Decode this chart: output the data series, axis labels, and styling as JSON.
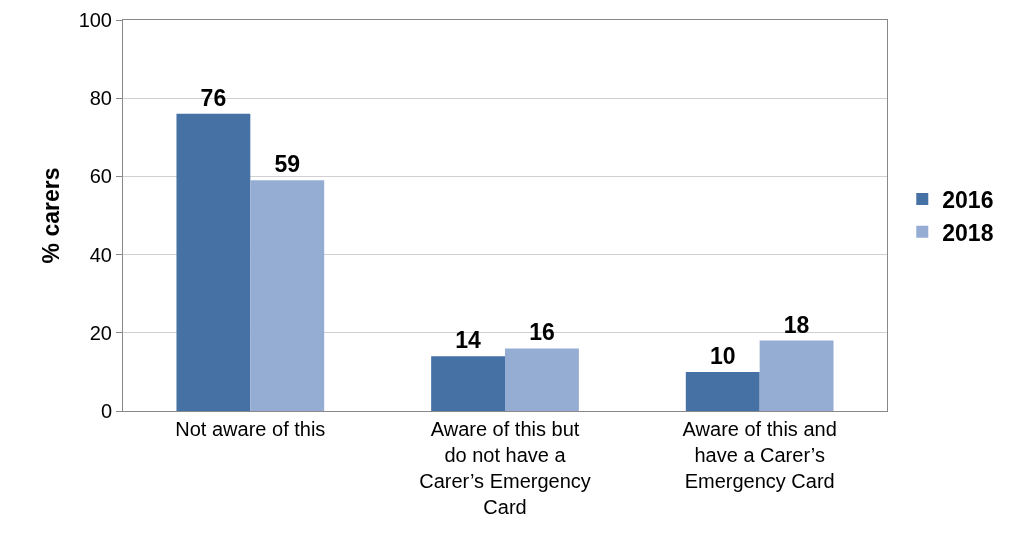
{
  "chart_data": {
    "type": "bar",
    "ylabel": "% carers",
    "categories": [
      "Not aware of this",
      "Aware of this but do not have a Carer’s Emergency Card",
      "Aware of this and have a Carer’s Emergency Card"
    ],
    "series": [
      {
        "name": "2016",
        "color": "#4671a5",
        "values": [
          76,
          14,
          10
        ]
      },
      {
        "name": "2018",
        "color": "#95acd3",
        "values": [
          59,
          16,
          18
        ]
      }
    ],
    "ylim": [
      0,
      100
    ],
    "yticks": [
      0,
      20,
      40,
      60,
      80,
      100
    ],
    "grid": "y",
    "legend": "right",
    "data_labels": true
  }
}
